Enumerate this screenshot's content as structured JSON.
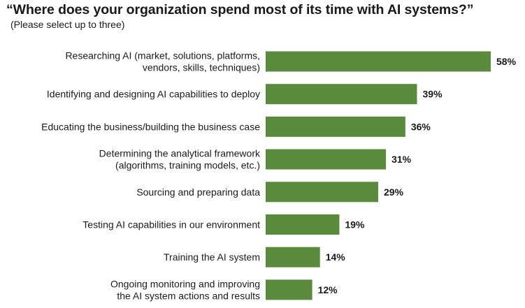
{
  "chart_data": {
    "type": "bar",
    "orientation": "horizontal",
    "title": "“Where does your organization spend most of its time with AI systems?”",
    "subtitle": "(Please select up to three)",
    "categories": [
      [
        "Researching AI (market, solutions, platforms,",
        "vendors, skills, techniques)"
      ],
      [
        "Identifying and designing AI capabilities to deploy"
      ],
      [
        "Educating the business/building the business case"
      ],
      [
        "Determining the analytical framework",
        "(algorithms, training models, etc.)"
      ],
      [
        "Sourcing and preparing data"
      ],
      [
        "Testing AI capabilities in our environment"
      ],
      [
        "Training the AI system"
      ],
      [
        "Ongoing monitoring and improving",
        "the AI system actions and results"
      ]
    ],
    "values": [
      58,
      39,
      36,
      31,
      29,
      19,
      14,
      12
    ],
    "value_labels": [
      "58%",
      "39%",
      "36%",
      "31%",
      "29%",
      "19%",
      "14%",
      "12%"
    ],
    "unit": "%",
    "xlim": [
      0,
      58
    ],
    "bar_color": "#5a8a3c",
    "grid": false,
    "legend": "none"
  }
}
